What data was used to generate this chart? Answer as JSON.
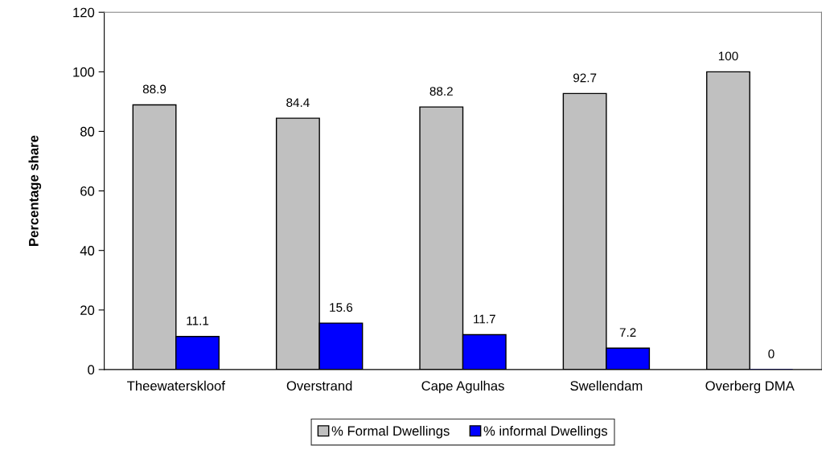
{
  "chart_data": {
    "type": "bar",
    "ylabel": "Percentage share",
    "categories": [
      "Theewaterskloof",
      "Overstrand",
      "Cape Agulhas",
      "Swellendam",
      "Overberg DMA"
    ],
    "series": [
      {
        "name": "% Formal Dwellings",
        "color": "#c0c0c0",
        "values": [
          88.9,
          84.4,
          88.2,
          92.7,
          100
        ]
      },
      {
        "name": "% informal Dwellings",
        "color": "#0000ff",
        "values": [
          11.1,
          15.6,
          11.7,
          7.2,
          0
        ]
      }
    ],
    "ylim": [
      0,
      120
    ],
    "yticks": [
      0,
      20,
      40,
      60,
      80,
      100,
      120
    ],
    "grid": false,
    "legend": "bottom",
    "data_labels": true
  }
}
